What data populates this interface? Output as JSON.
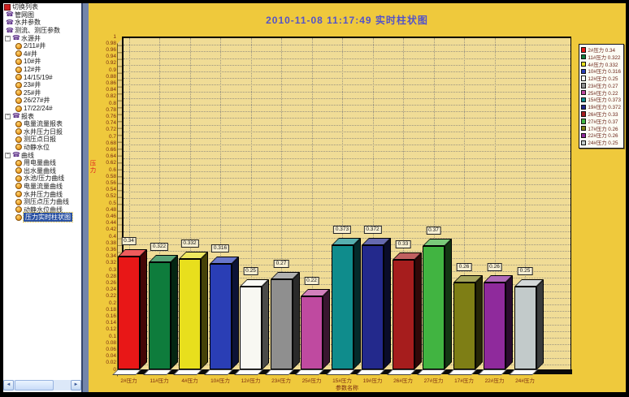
{
  "sidebar": {
    "root_label": "切换列表",
    "items": [
      {
        "label": "管网图",
        "level": 1,
        "icon": "phone"
      },
      {
        "label": "水井参数",
        "level": 1,
        "icon": "phone"
      },
      {
        "label": "测流、测压参数",
        "level": 1,
        "icon": "phone"
      },
      {
        "label": "水源井",
        "level": 1,
        "icon": "phone",
        "expandable": true
      },
      {
        "label": "2/11#井",
        "level": 2,
        "icon": "ball"
      },
      {
        "label": "4#井",
        "level": 2,
        "icon": "ball"
      },
      {
        "label": "10#井",
        "level": 2,
        "icon": "ball"
      },
      {
        "label": "12#井",
        "level": 2,
        "icon": "ball"
      },
      {
        "label": "14/15/19#",
        "level": 2,
        "icon": "ball"
      },
      {
        "label": "23#井",
        "level": 2,
        "icon": "ball"
      },
      {
        "label": "25#井",
        "level": 2,
        "icon": "ball"
      },
      {
        "label": "26/27#井",
        "level": 2,
        "icon": "ball"
      },
      {
        "label": "17/22/24#",
        "level": 2,
        "icon": "ball"
      },
      {
        "label": "报表",
        "level": 1,
        "icon": "phone",
        "expandable": true
      },
      {
        "label": "电量流量报表",
        "level": 2,
        "icon": "ball"
      },
      {
        "label": "水井压力日报",
        "level": 2,
        "icon": "ball"
      },
      {
        "label": "测压点日报",
        "level": 2,
        "icon": "ball"
      },
      {
        "label": "动静水位",
        "level": 2,
        "icon": "ball"
      },
      {
        "label": "曲线",
        "level": 1,
        "icon": "phone",
        "expandable": true
      },
      {
        "label": "用电量曲线",
        "level": 2,
        "icon": "ball"
      },
      {
        "label": "出水量曲线",
        "level": 2,
        "icon": "ball"
      },
      {
        "label": "水池/压力曲线",
        "level": 2,
        "icon": "ball"
      },
      {
        "label": "电量流量曲线",
        "level": 2,
        "icon": "ball"
      },
      {
        "label": "水井压力曲线",
        "level": 2,
        "icon": "ball"
      },
      {
        "label": "测压点压力曲线",
        "level": 2,
        "icon": "ball"
      },
      {
        "label": "动静水位曲线",
        "level": 2,
        "icon": "ball"
      },
      {
        "label": "压力实时柱状图",
        "level": 2,
        "icon": "ball",
        "selected": true
      }
    ],
    "scrollbar": {
      "left_arrow": "◄",
      "right_arrow": "►"
    }
  },
  "chart_data": {
    "type": "bar",
    "title": "2010-11-08 11:17:49 实时柱状图",
    "xlabel": "参数名称",
    "ylabel": "压力",
    "ylim": [
      0,
      1
    ],
    "ytick_step": 0.02,
    "grid": true,
    "legend_position": "top-right",
    "categories": [
      "2#压力",
      "11#压力",
      "4#压力",
      "10#压力",
      "12#压力",
      "23#压力",
      "25#压力",
      "15#压力",
      "19#压力",
      "26#压力",
      "27#压力",
      "17#压力",
      "22#压力",
      "24#压力"
    ],
    "values": [
      0.34,
      0.322,
      0.332,
      0.316,
      0.25,
      0.27,
      0.22,
      0.373,
      0.372,
      0.33,
      0.37,
      0.26,
      0.26,
      0.25
    ],
    "colors": [
      "#e81717",
      "#0e7c3c",
      "#e8df1d",
      "#2a3eb5",
      "#f8f8f2",
      "#8f8f8f",
      "#bf4aa0",
      "#0f8c8c",
      "#23298c",
      "#a61d1d",
      "#41b441",
      "#7e7e15",
      "#8f2a9c",
      "#c2caca"
    ]
  },
  "theme": {
    "panel_bg": "#efc93c",
    "plot_bg": "#f0dc96",
    "title_color": "#5353c9",
    "tick_color": "#7a2a12",
    "ylabel_color": "#e02020",
    "selected_bg": "#2b52a3",
    "splitter_color": "#7385ab"
  }
}
